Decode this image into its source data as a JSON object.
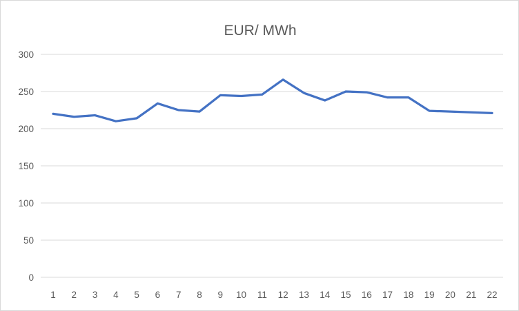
{
  "chart_data": {
    "type": "line",
    "title": "EUR/ MWh",
    "categories": [
      "1",
      "2",
      "3",
      "4",
      "5",
      "6",
      "7",
      "8",
      "9",
      "10",
      "11",
      "12",
      "13",
      "14",
      "15",
      "16",
      "17",
      "18",
      "19",
      "20",
      "21",
      "22"
    ],
    "values": [
      220,
      216,
      218,
      210,
      214,
      234,
      225,
      223,
      245,
      244,
      246,
      266,
      248,
      238,
      250,
      249,
      242,
      242,
      224,
      223,
      222,
      221
    ],
    "xlabel": "",
    "ylabel": "",
    "ylim": [
      0,
      300
    ],
    "yticks": [
      0,
      50,
      100,
      150,
      200,
      250,
      300
    ],
    "grid": true,
    "legend": "none",
    "colors": {
      "line": "#4472C4",
      "gridline": "#d9d9d9",
      "axis_label": "#595959",
      "title": "#595959",
      "background": "#ffffff",
      "frame_border": "#d9d9d9"
    }
  }
}
